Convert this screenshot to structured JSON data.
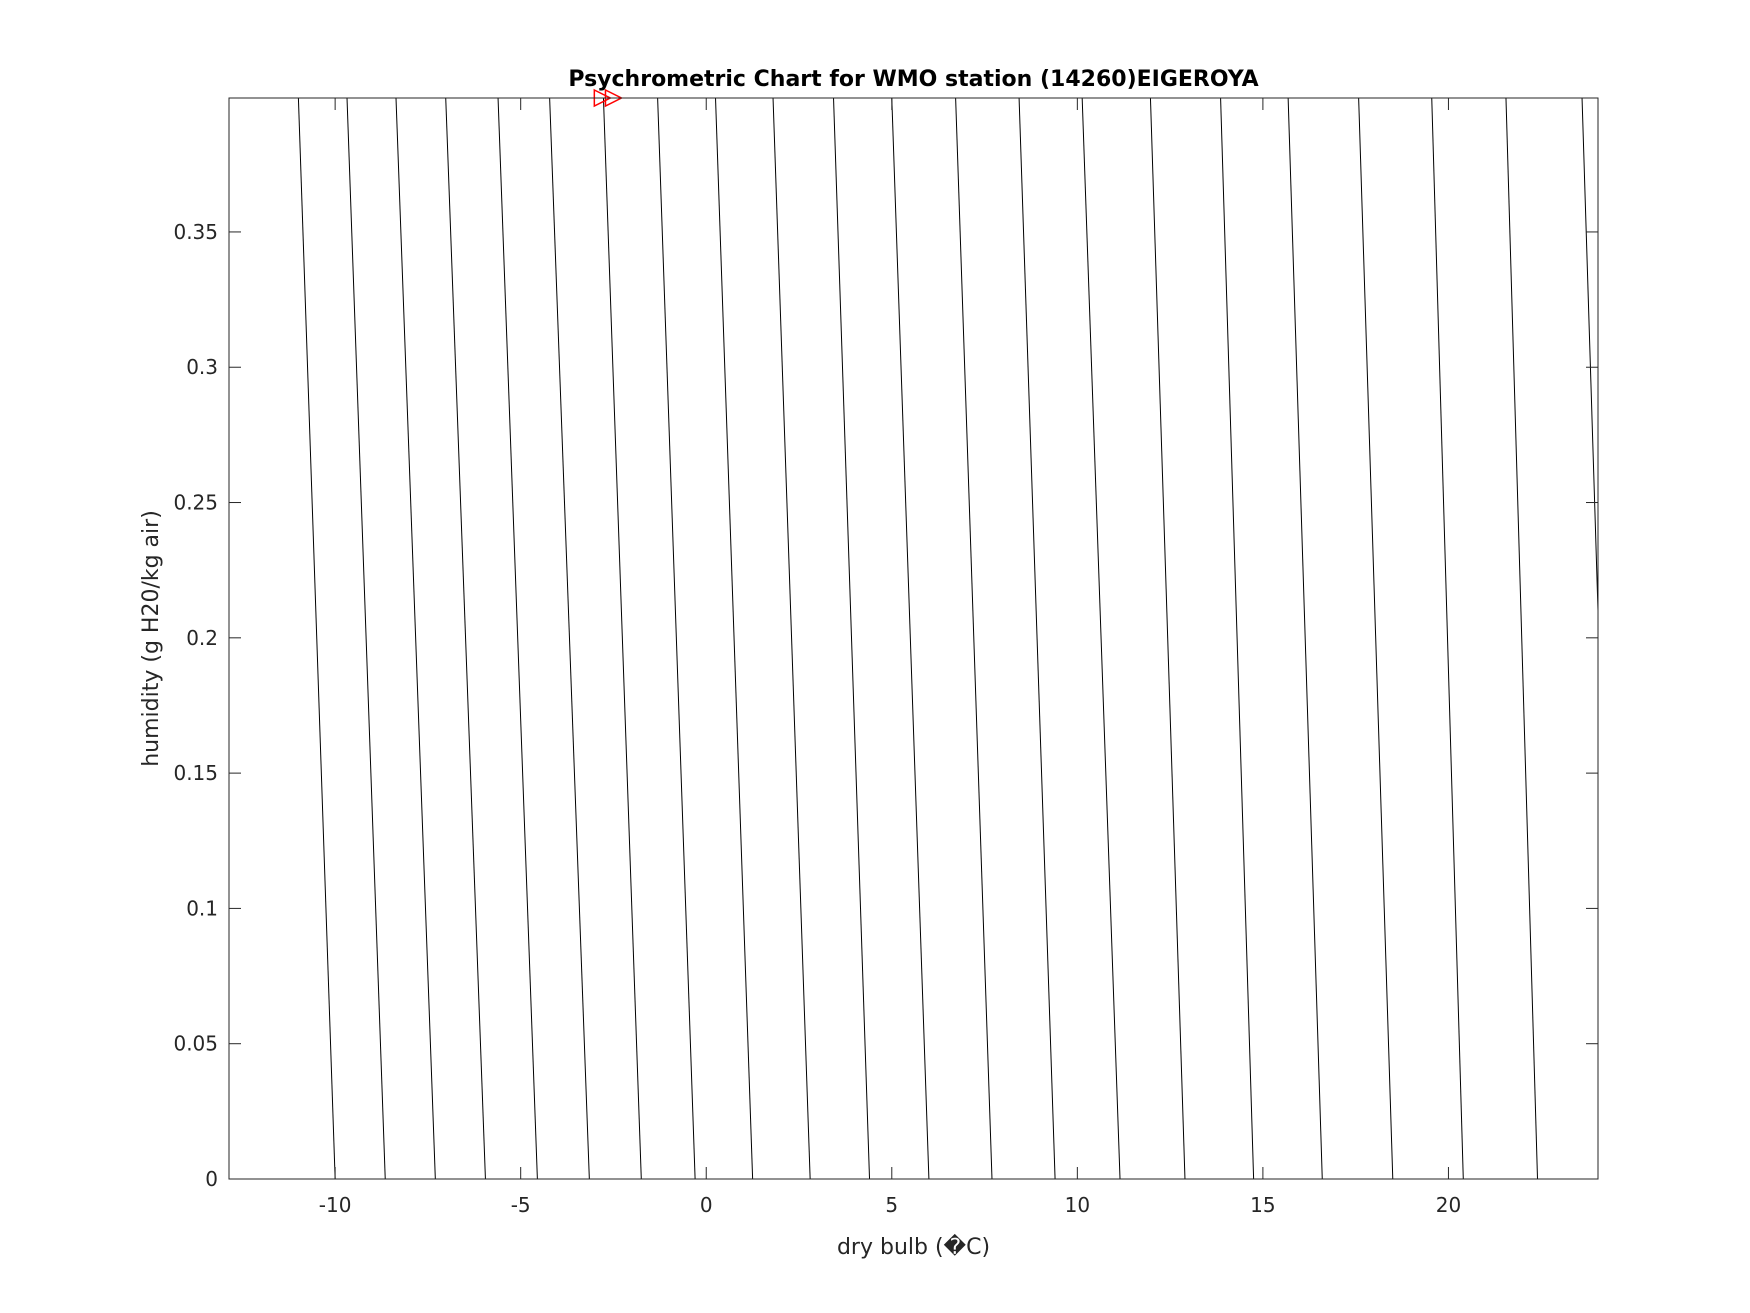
{
  "chart_data": {
    "type": "line",
    "title": "Psychrometric Chart for WMO station (14260)EIGEROYA",
    "xlabel": "dry bulb (�C)",
    "ylabel": "humidity (g H20/kg air)",
    "xlim": [
      -12.86,
      24.03
    ],
    "ylim": [
      0,
      0.3995
    ],
    "x_ticks": [
      -10,
      -5,
      0,
      5,
      10,
      15,
      20
    ],
    "x_tick_labels": [
      "-10",
      "-5",
      "0",
      "5",
      "10",
      "15",
      "20"
    ],
    "y_ticks": [
      0,
      0.05,
      0.1,
      0.15,
      0.2,
      0.25,
      0.3,
      0.35
    ],
    "y_tick_labels": [
      "0",
      "0.05",
      "0.1",
      "0.15",
      "0.2",
      "0.25",
      "0.3",
      "0.35"
    ],
    "grid": false,
    "line_color": "#000000",
    "marker_color": "#ff0000",
    "lines": [
      {
        "x_at_ymin": -10.0,
        "x_at_ymax": -10.99
      },
      {
        "x_at_ymin": -8.65,
        "x_at_ymax": -9.68
      },
      {
        "x_at_ymin": -7.3,
        "x_at_ymax": -8.36
      },
      {
        "x_at_ymin": -5.95,
        "x_at_ymax": -7.02
      },
      {
        "x_at_ymin": -4.55,
        "x_at_ymax": -5.61
      },
      {
        "x_at_ymin": -3.15,
        "x_at_ymax": -4.22
      },
      {
        "x_at_ymin": -1.75,
        "x_at_ymax": -2.77
      },
      {
        "x_at_ymin": -0.3,
        "x_at_ymax": -1.31
      },
      {
        "x_at_ymin": 1.25,
        "x_at_ymax": 0.25
      },
      {
        "x_at_ymin": 2.8,
        "x_at_ymax": 1.8
      },
      {
        "x_at_ymin": 4.4,
        "x_at_ymax": 3.43
      },
      {
        "x_at_ymin": 6.0,
        "x_at_ymax": 5.0
      },
      {
        "x_at_ymin": 7.7,
        "x_at_ymax": 6.72
      },
      {
        "x_at_ymin": 9.4,
        "x_at_ymax": 8.43
      },
      {
        "x_at_ymin": 11.15,
        "x_at_ymax": 10.13
      },
      {
        "x_at_ymin": 12.9,
        "x_at_ymax": 11.97
      },
      {
        "x_at_ymin": 14.75,
        "x_at_ymax": 13.86
      },
      {
        "x_at_ymin": 16.6,
        "x_at_ymax": 15.68
      },
      {
        "x_at_ymin": 18.5,
        "x_at_ymax": 17.58
      },
      {
        "x_at_ymin": 20.4,
        "x_at_ymax": 19.55
      },
      {
        "x_at_ymin": 22.4,
        "x_at_ymax": 21.55
      }
    ],
    "edge_line": {
      "x_start": 23.6,
      "y_start": 0.3995,
      "x_end": 24.03,
      "y_end": 0.21
    },
    "markers": [
      {
        "x": -2.8,
        "y": 0.3995,
        "shape": "triangle-right"
      },
      {
        "x": -2.5,
        "y": 0.3995,
        "shape": "triangle-right"
      }
    ]
  }
}
